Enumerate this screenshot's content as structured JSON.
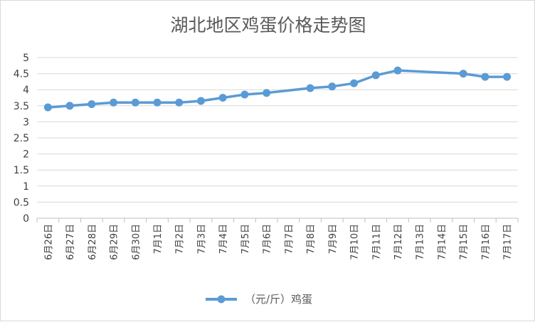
{
  "chart_data": {
    "type": "line",
    "title": "湖北地区鸡蛋价格走势图",
    "categories": [
      "6月26日",
      "6月27日",
      "6月28日",
      "6月29日",
      "6月30日",
      "7月1日",
      "7月2日",
      "7月3日",
      "7月4日",
      "7月5日",
      "7月6日",
      "7月7日",
      "7月8日",
      "7月9日",
      "7月10日",
      "7月11日",
      "7月12日",
      "7月13日",
      "7月14日",
      "7月15日",
      "7月16日",
      "7月17日"
    ],
    "series": [
      {
        "name": "（元/斤）鸡蛋",
        "color": "#5b9bd5",
        "values": [
          3.45,
          3.5,
          3.55,
          3.6,
          3.6,
          3.6,
          3.6,
          3.65,
          3.75,
          3.85,
          3.9,
          null,
          4.05,
          4.1,
          4.2,
          4.45,
          4.6,
          null,
          null,
          4.5,
          4.4,
          4.4
        ]
      }
    ],
    "ylim": [
      0,
      5
    ],
    "yticks": [
      "0",
      "0.5",
      "1",
      "1.5",
      "2",
      "2.5",
      "3",
      "3.5",
      "4",
      "4.5",
      "5"
    ],
    "grid": true,
    "legend_position": "bottom"
  }
}
